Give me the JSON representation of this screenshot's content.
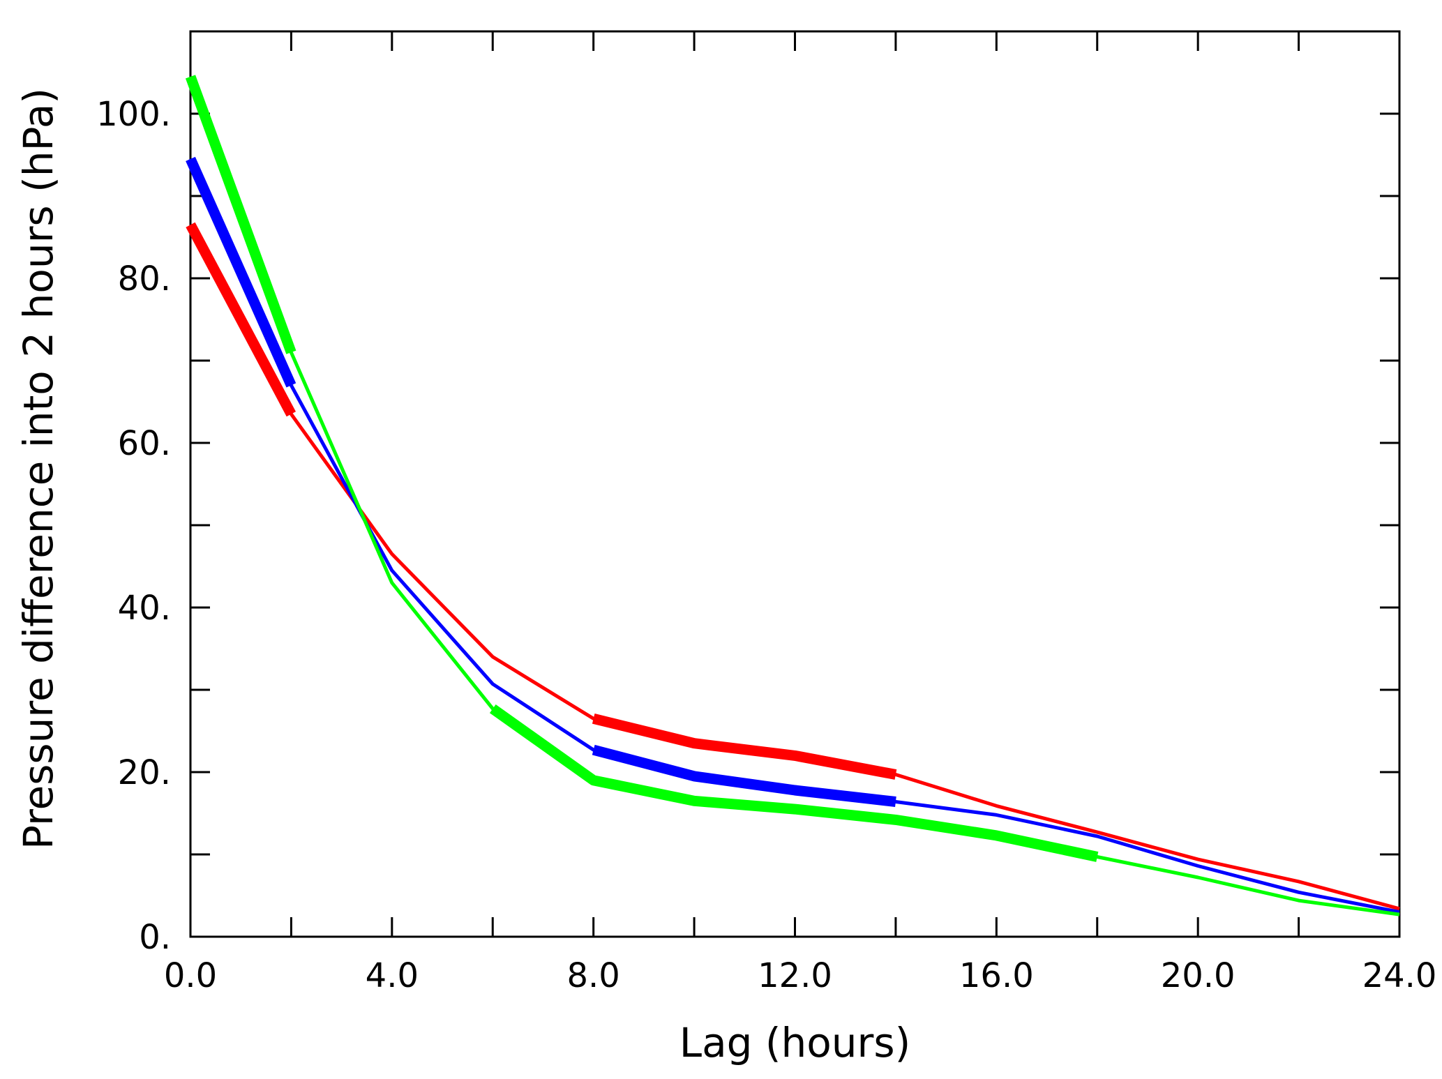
{
  "chart_data": {
    "type": "line",
    "title": "",
    "xlabel": "Lag (hours)",
    "ylabel": "Pressure difference into 2 hours (hPa)",
    "xlim": [
      0,
      24
    ],
    "ylim": [
      0,
      110
    ],
    "x_ticks_major": [
      0,
      4,
      8,
      12,
      16,
      20,
      24
    ],
    "x_tick_labels": [
      "0.0",
      "4.0",
      "8.0",
      "12.0",
      "16.0",
      "20.0",
      "24.0"
    ],
    "x_ticks_minor": [
      2,
      6,
      10,
      14,
      18,
      22
    ],
    "y_ticks_major": [
      0,
      20,
      40,
      60,
      80,
      100
    ],
    "y_tick_labels": [
      "0.",
      "20.",
      "40.",
      "60.",
      "80.",
      "100."
    ],
    "y_ticks_minor": [
      10,
      30,
      50,
      70,
      90
    ],
    "grid": false,
    "legend": "none",
    "x": [
      0,
      2,
      4,
      6,
      8,
      10,
      12,
      14,
      16,
      18,
      20,
      22,
      24
    ],
    "series": [
      {
        "color": "#ff0000",
        "values": [
          86.5,
          63.5,
          46.5,
          34.0,
          26.5,
          23.5,
          22.0,
          19.7,
          15.9,
          12.7,
          9.4,
          6.7,
          3.4
        ],
        "emphasized_segments": [
          [
            0,
            2
          ],
          [
            8,
            14
          ]
        ]
      },
      {
        "color": "#0000ff",
        "values": [
          94.5,
          67.0,
          44.5,
          30.7,
          22.7,
          19.5,
          17.8,
          16.4,
          14.8,
          12.2,
          8.6,
          5.4,
          3.0
        ],
        "emphasized_segments": [
          [
            0,
            2
          ],
          [
            8,
            14
          ]
        ]
      },
      {
        "color": "#00ff00",
        "values": [
          104.5,
          71.0,
          43.0,
          27.7,
          19.0,
          16.5,
          15.5,
          14.2,
          12.3,
          9.7,
          7.2,
          4.4,
          2.7
        ],
        "emphasized_segments": [
          [
            0,
            2
          ],
          [
            6,
            18
          ]
        ]
      }
    ]
  }
}
